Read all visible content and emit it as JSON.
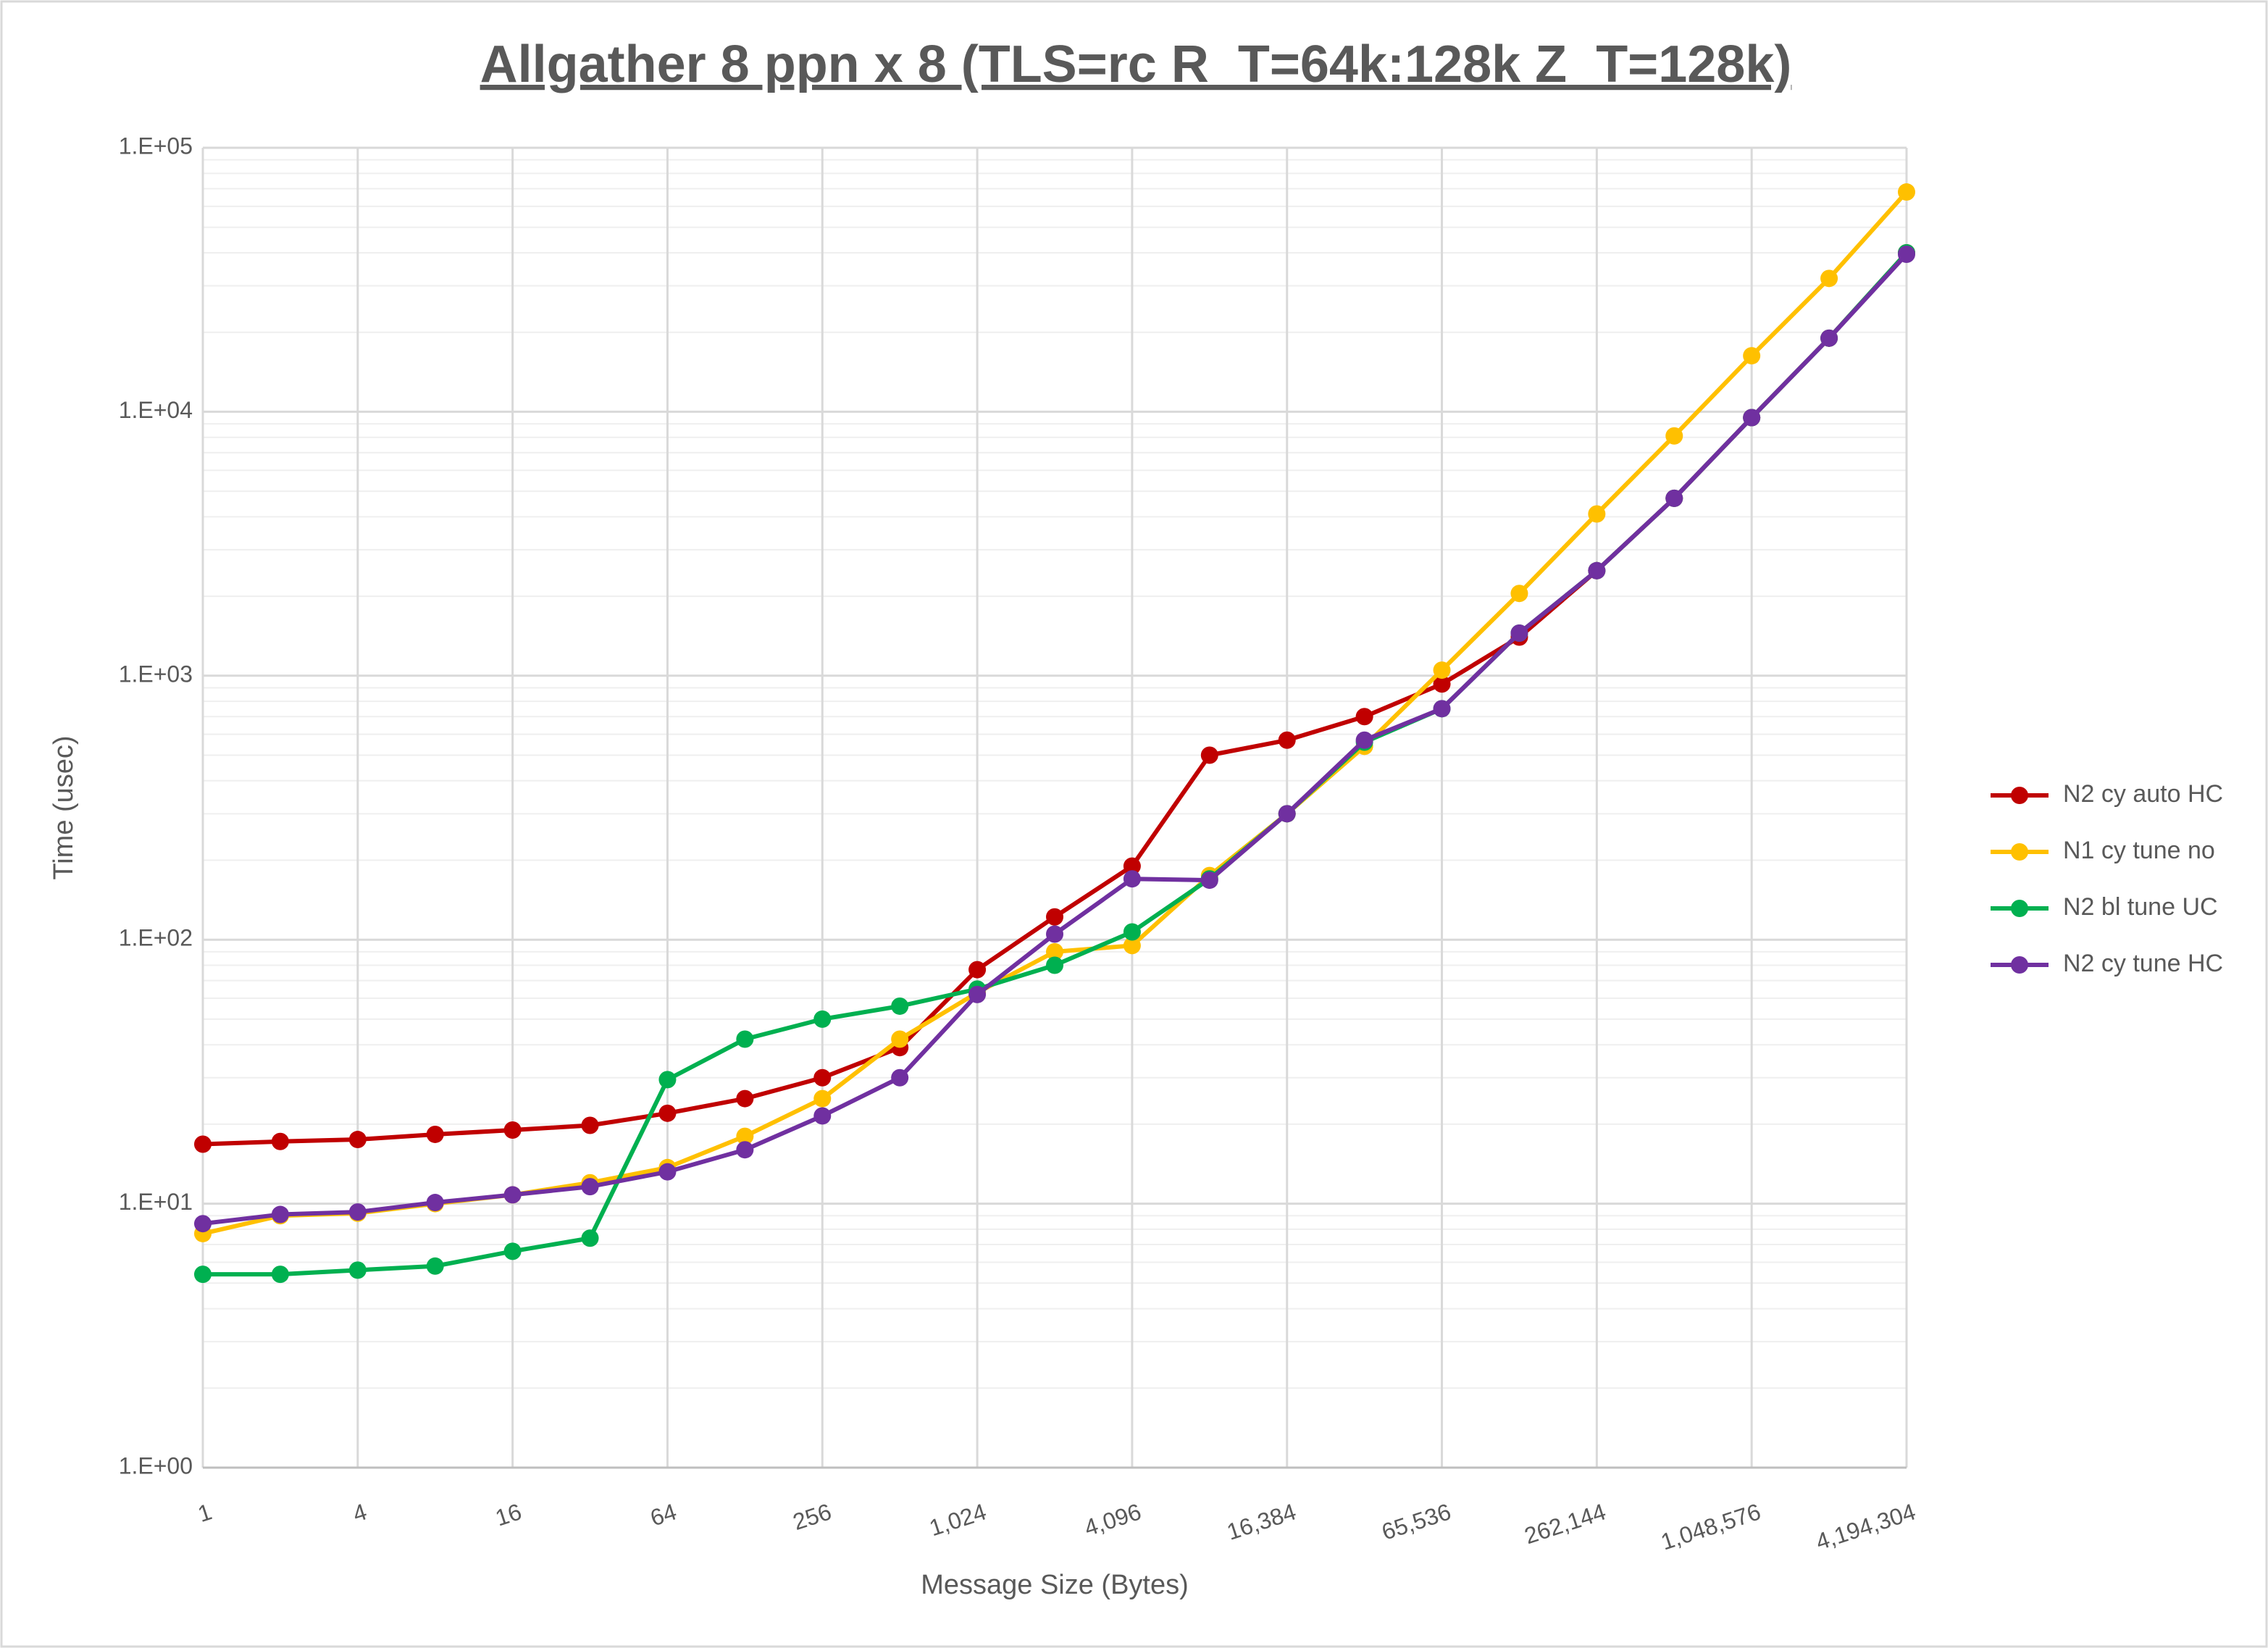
{
  "chart_data": {
    "type": "line",
    "title": "Allgather 8 ppn x 8 (TLS=rc R_T=64k:128k Z_T=128k)",
    "xlabel": "Message Size (Bytes)",
    "ylabel": "Time (usec)",
    "x": [
      1,
      2,
      4,
      8,
      16,
      32,
      64,
      128,
      256,
      512,
      1024,
      2048,
      4096,
      8192,
      16384,
      32768,
      65536,
      131072,
      262144,
      524288,
      1048576,
      2097152,
      4194304
    ],
    "series": [
      {
        "name": "N2 cy auto HC",
        "color": "#c00000",
        "values": [
          16.8,
          17.2,
          17.5,
          18.3,
          19.0,
          19.8,
          22,
          25,
          30,
          39,
          77,
          122,
          190,
          500,
          570,
          700,
          930,
          1400,
          2500,
          4700,
          9500,
          19000,
          40000
        ]
      },
      {
        "name": "N1 cy tune no",
        "color": "#ffc000",
        "values": [
          7.7,
          9.0,
          9.2,
          10,
          10.8,
          12,
          13.7,
          18,
          25,
          42,
          63,
          90,
          95,
          175,
          300,
          540,
          1050,
          2050,
          4100,
          8100,
          16300,
          32000,
          68000
        ]
      },
      {
        "name": "N2 bl tune UC",
        "color": "#00b050",
        "values": [
          5.4,
          5.4,
          5.6,
          5.8,
          6.6,
          7.4,
          29.5,
          42,
          50,
          56,
          65,
          80,
          107,
          170,
          300,
          560,
          750,
          1450,
          2500,
          4700,
          9500,
          19000,
          40000
        ]
      },
      {
        "name": "N2 cy tune HC",
        "color": "#7030a0",
        "values": [
          8.4,
          9.1,
          9.3,
          10.1,
          10.8,
          11.6,
          13.2,
          16,
          21.5,
          30,
          62,
          105,
          170,
          168,
          300,
          570,
          750,
          1450,
          2500,
          4700,
          9500,
          19000,
          39500
        ]
      }
    ],
    "xscale": "log2",
    "yscale": "log",
    "xlim": [
      1,
      4194304
    ],
    "ylim": [
      1,
      100000
    ],
    "xticks": [
      1,
      4,
      16,
      64,
      256,
      {
        "value": 1024,
        "label": "1,024"
      },
      {
        "value": 4096,
        "label": "4,096"
      },
      {
        "value": 16384,
        "label": "16,384"
      },
      {
        "value": 65536,
        "label": "65,536"
      },
      {
        "value": 262144,
        "label": "262,144"
      },
      {
        "value": 1048576,
        "label": "1,048,576"
      },
      {
        "value": 4194304,
        "label": "4,194,304"
      }
    ],
    "yticks": [
      {
        "value": 1,
        "label": "1.E+00"
      },
      {
        "value": 10,
        "label": "1.E+01"
      },
      {
        "value": 100,
        "label": "1.E+02"
      },
      {
        "value": 1000,
        "label": "1.E+03"
      },
      {
        "value": 10000,
        "label": "1.E+04"
      },
      {
        "value": 100000,
        "label": "1.E+05"
      }
    ],
    "grid": true,
    "minor_grid": true,
    "legend": "right"
  }
}
